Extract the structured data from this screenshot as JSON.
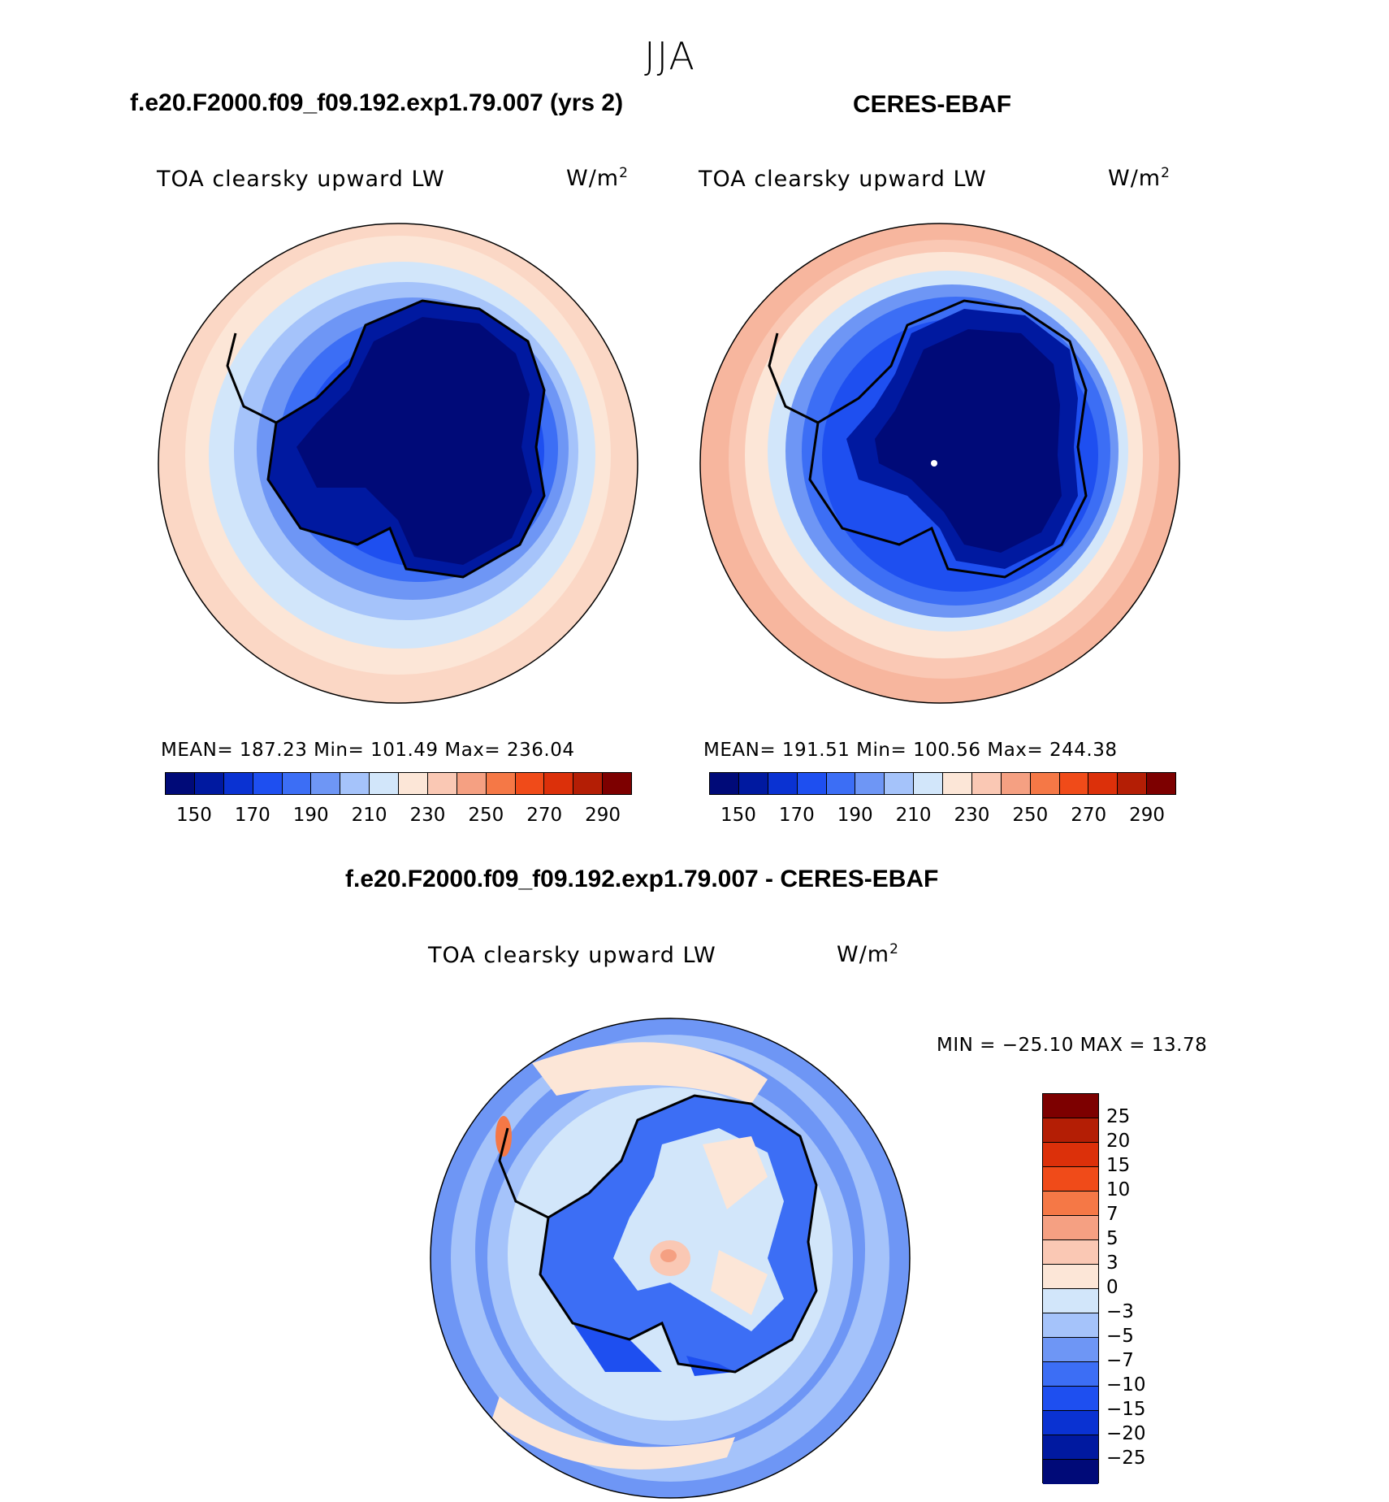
{
  "season": "JJA",
  "panels": [
    {
      "title": "f.e20.F2000.f09_f09.192.exp1.79.007 (yrs 2)",
      "variable": "TOA clearsky upward LW",
      "units_base": "W/m",
      "units_exp": "2",
      "stats": "MEAN=  187.23   Min=  101.49   Max=  236.04"
    },
    {
      "title": "CERES-EBAF",
      "variable": "TOA clearsky upward LW",
      "units_base": "W/m",
      "units_exp": "2",
      "stats": "MEAN=  191.51   Min=  100.56   Max=  244.38"
    },
    {
      "title": "f.e20.F2000.f09_f09.192.exp1.79.007 - CERES-EBAF",
      "variable": "TOA clearsky upward LW",
      "units_base": "W/m",
      "units_exp": "2",
      "stats": "MIN  =  −25.10  MAX  =    13.78"
    }
  ],
  "colorbar_main": {
    "colors": [
      "#000a78",
      "#0019a0",
      "#0a32d2",
      "#1e4ff0",
      "#3c6ef5",
      "#6e96f5",
      "#a5c3fa",
      "#d2e6fa",
      "#fce6d7",
      "#fac8b4",
      "#f5a082",
      "#f57846",
      "#f04b19",
      "#dc300a",
      "#b41e05",
      "#7d0000"
    ],
    "labels": [
      "150",
      "170",
      "190",
      "210",
      "230",
      "250",
      "270",
      "290"
    ]
  },
  "colorbar_diff": {
    "colors": [
      "#7d0000",
      "#b41e05",
      "#dc300a",
      "#f04b19",
      "#f57846",
      "#f5a082",
      "#fac8b4",
      "#fce6d7",
      "#d2e6fa",
      "#a5c3fa",
      "#6e96f5",
      "#3c6ef5",
      "#1e4ff0",
      "#0a32d2",
      "#0019a0",
      "#000a78"
    ],
    "labels": [
      "25",
      "20",
      "15",
      "10",
      "7",
      "5",
      "3",
      "0",
      "−3",
      "−5",
      "−7",
      "−10",
      "−15",
      "−20",
      "−25"
    ]
  }
}
